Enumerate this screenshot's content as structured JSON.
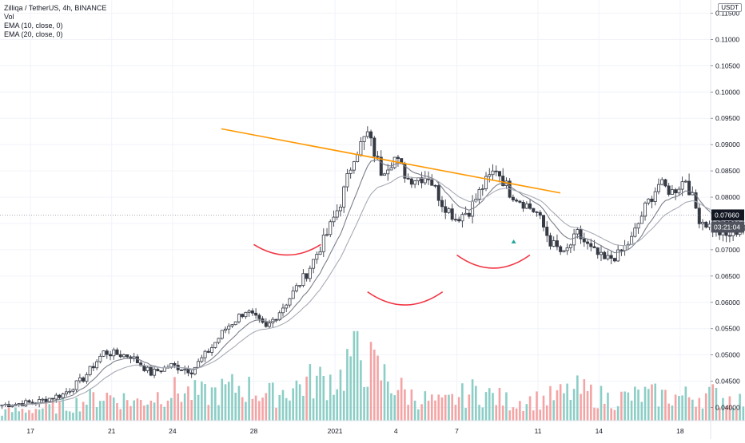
{
  "chart_data": {
    "type": "candlestick",
    "title": "Zilliqa / TetherUS, 4h, BINANCE",
    "indicators": [
      "Vol",
      "EMA (10, close, 0)",
      "EMA (20, close, 0)"
    ],
    "currency": "USDT",
    "ylim": [
      0.0375,
      0.1175
    ],
    "yticks": [
      "0.04000",
      "0.04500",
      "0.05000",
      "0.05500",
      "0.06000",
      "0.06500",
      "0.07000",
      "0.07500",
      "0.08000",
      "0.08500",
      "0.09000",
      "0.09500",
      "0.10000",
      "0.10500",
      "0.11000",
      "0.11500"
    ],
    "xlim": [
      15.5,
      50.5
    ],
    "x_unit": "day index from 1 Dec 2020 (32 = 1 Jan 2021)",
    "xticks": [
      {
        "x": 17,
        "label": "17"
      },
      {
        "x": 21,
        "label": "21"
      },
      {
        "x": 24,
        "label": "24"
      },
      {
        "x": 28,
        "label": "28"
      },
      {
        "x": 32,
        "label": "2021"
      },
      {
        "x": 35,
        "label": "4"
      },
      {
        "x": 38,
        "label": "7"
      },
      {
        "x": 42,
        "label": "11"
      },
      {
        "x": 45,
        "label": "14"
      },
      {
        "x": 49,
        "label": "18"
      },
      {
        "x": 52,
        "label": "21"
      }
    ],
    "candle_start": 15.6,
    "candle_step": 0.1667,
    "price_path": [
      {
        "i": 0,
        "p": 0.0405
      },
      {
        "i": 10,
        "p": 0.041
      },
      {
        "i": 18,
        "p": 0.0425
      },
      {
        "i": 24,
        "p": 0.0455
      },
      {
        "i": 30,
        "p": 0.0505
      },
      {
        "i": 38,
        "p": 0.0498
      },
      {
        "i": 44,
        "p": 0.0465
      },
      {
        "i": 50,
        "p": 0.048
      },
      {
        "i": 56,
        "p": 0.047
      },
      {
        "i": 62,
        "p": 0.0515
      },
      {
        "i": 66,
        "p": 0.055
      },
      {
        "i": 72,
        "p": 0.0585
      },
      {
        "i": 78,
        "p": 0.055
      },
      {
        "i": 84,
        "p": 0.06
      },
      {
        "i": 90,
        "p": 0.0655
      },
      {
        "i": 96,
        "p": 0.073
      },
      {
        "i": 100,
        "p": 0.079
      },
      {
        "i": 104,
        "p": 0.088
      },
      {
        "i": 108,
        "p": 0.092
      },
      {
        "i": 112,
        "p": 0.085
      },
      {
        "i": 116,
        "p": 0.0875
      },
      {
        "i": 120,
        "p": 0.0835
      },
      {
        "i": 126,
        "p": 0.084
      },
      {
        "i": 130,
        "p": 0.079
      },
      {
        "i": 134,
        "p": 0.076
      },
      {
        "i": 138,
        "p": 0.0775
      },
      {
        "i": 142,
        "p": 0.082
      },
      {
        "i": 146,
        "p": 0.0855
      },
      {
        "i": 150,
        "p": 0.081
      },
      {
        "i": 154,
        "p": 0.079
      },
      {
        "i": 158,
        "p": 0.077
      },
      {
        "i": 162,
        "p": 0.0715
      },
      {
        "i": 166,
        "p": 0.069
      },
      {
        "i": 170,
        "p": 0.073
      },
      {
        "i": 174,
        "p": 0.07
      },
      {
        "i": 178,
        "p": 0.068
      },
      {
        "i": 182,
        "p": 0.069
      },
      {
        "i": 186,
        "p": 0.072
      },
      {
        "i": 190,
        "p": 0.078
      },
      {
        "i": 194,
        "p": 0.0825
      },
      {
        "i": 198,
        "p": 0.081
      },
      {
        "i": 202,
        "p": 0.0835
      },
      {
        "i": 206,
        "p": 0.076
      },
      {
        "i": 210,
        "p": 0.074
      },
      {
        "i": 214,
        "p": 0.0725
      },
      {
        "i": 218,
        "p": 0.074
      },
      {
        "i": 222,
        "p": 0.0775
      },
      {
        "i": 226,
        "p": 0.08
      },
      {
        "i": 229,
        "p": 0.0766
      }
    ],
    "volume_scale_max": 1.0,
    "volume_path": [
      {
        "i": 0,
        "v": 0.1
      },
      {
        "i": 20,
        "v": 0.18
      },
      {
        "i": 30,
        "v": 0.3
      },
      {
        "i": 40,
        "v": 0.22
      },
      {
        "i": 50,
        "v": 0.35
      },
      {
        "i": 60,
        "v": 0.3
      },
      {
        "i": 70,
        "v": 0.4
      },
      {
        "i": 80,
        "v": 0.3
      },
      {
        "i": 90,
        "v": 0.45
      },
      {
        "i": 100,
        "v": 0.5
      },
      {
        "i": 104,
        "v": 0.85
      },
      {
        "i": 110,
        "v": 0.6
      },
      {
        "i": 120,
        "v": 0.3
      },
      {
        "i": 130,
        "v": 0.2
      },
      {
        "i": 140,
        "v": 0.35
      },
      {
        "i": 150,
        "v": 0.22
      },
      {
        "i": 160,
        "v": 0.25
      },
      {
        "i": 170,
        "v": 0.35
      },
      {
        "i": 180,
        "v": 0.25
      },
      {
        "i": 190,
        "v": 0.3
      },
      {
        "i": 200,
        "v": 0.28
      },
      {
        "i": 210,
        "v": 0.3
      },
      {
        "i": 220,
        "v": 0.22
      },
      {
        "i": 229,
        "v": 0.15
      }
    ],
    "colors": {
      "candle_body": "#363a45",
      "candle_hollow": "#ffffff",
      "vol_up": "#7fc9c0",
      "vol_down": "#f39a9a",
      "ema10": "#7b7f8a",
      "ema20": "#a7abb5",
      "trendline": "#ff9800",
      "arc": "#f23645",
      "grid": "#f0f3fa",
      "axis_text": "#131722",
      "price_tag_bg": "#131722",
      "price_tag_text": "#ffffff",
      "marker": "#26a69a"
    },
    "annotations": {
      "resistance_line": {
        "from": [
          26.4,
          0.093
        ],
        "to": [
          43.1,
          0.0808
        ]
      },
      "arcs": [
        {
          "x1": 28.0,
          "x2": 31.3,
          "y_ends": 0.071,
          "y_bottom": 0.069
        },
        {
          "x1": 33.6,
          "x2": 37.3,
          "y_ends": 0.062,
          "y_bottom": 0.0595
        },
        {
          "x1": 38.0,
          "x2": 41.6,
          "y_ends": 0.069,
          "y_bottom": 0.0665
        }
      ],
      "marker": {
        "x": 40.8,
        "y": 0.0715
      }
    },
    "last_price": "0.07660",
    "countdown": "03:21:04"
  }
}
